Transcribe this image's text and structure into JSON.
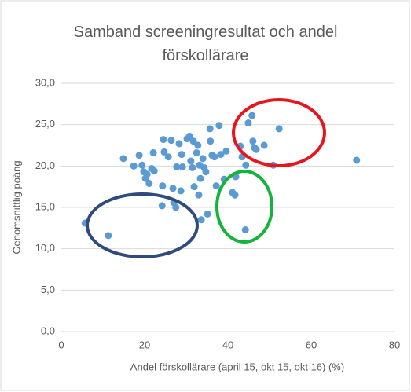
{
  "chart_data": {
    "type": "scatter",
    "title": "Samband screeningresultat och andel förskollärare",
    "x_label": "Andel förskollärare (april 15, okt 15, okt 16) (%)",
    "y_label": "Genomsnittlig poäng",
    "color": "#5b9bd5",
    "x": [
      5.7,
      11.3,
      14.9,
      17.4,
      18.7,
      19.4,
      19.8,
      20.2,
      20.6,
      21.1,
      21.7,
      22.3,
      22.1,
      24.2,
      24.5,
      24.7,
      24.3,
      25.7,
      26.4,
      26.8,
      27.0,
      27.5,
      27.7,
      28.3,
      28.7,
      28.9,
      29.1,
      30.2,
      30.8,
      31.1,
      31.5,
      31.7,
      31.9,
      32.5,
      32.8,
      33.0,
      33.2,
      33.4,
      33.6,
      34.0,
      34.3,
      34.7,
      35.1,
      35.7,
      35.8,
      36.2,
      36.8,
      37.2,
      37.9,
      38.3,
      39.1,
      39.6,
      41.1,
      41.7,
      41.9,
      43.0,
      43.4,
      44.2,
      44.3,
      44.9,
      45.8,
      46.0,
      46.4,
      46.8,
      48.7,
      52.3,
      50.9,
      70.9
    ],
    "values": [
      13.1,
      11.6,
      20.9,
      20.0,
      21.3,
      20.1,
      19.3,
      18.5,
      19.0,
      17.9,
      19.7,
      19.4,
      21.6,
      15.2,
      23.2,
      21.7,
      17.6,
      21.1,
      23.1,
      17.3,
      15.6,
      15.0,
      19.9,
      22.7,
      17.0,
      21.4,
      19.9,
      23.3,
      23.6,
      20.6,
      19.8,
      23.0,
      17.5,
      21.6,
      22.5,
      16.5,
      20.1,
      18.5,
      13.5,
      20.9,
      19.8,
      19.3,
      14.2,
      24.5,
      23.0,
      21.3,
      21.1,
      17.6,
      24.9,
      21.4,
      18.4,
      21.8,
      16.8,
      16.5,
      18.7,
      22.4,
      21.1,
      12.3,
      20.1,
      25.2,
      26.1,
      23.0,
      22.2,
      22.0,
      22.5,
      24.5,
      20.1,
      20.7
    ],
    "xlim": [
      0,
      80
    ],
    "xticks": [
      0,
      20,
      40,
      60,
      80
    ],
    "ylim": [
      0,
      30
    ],
    "yticks": [
      {
        "value": 0,
        "label": "0,0"
      },
      {
        "value": 5,
        "label": "5,0"
      },
      {
        "value": 10,
        "label": "10,0"
      },
      {
        "value": 15,
        "label": "15,0"
      },
      {
        "value": 20,
        "label": "20,0"
      },
      {
        "value": 25,
        "label": "25,0"
      },
      {
        "value": 30,
        "label": "30,0"
      }
    ],
    "grid": true
  }
}
